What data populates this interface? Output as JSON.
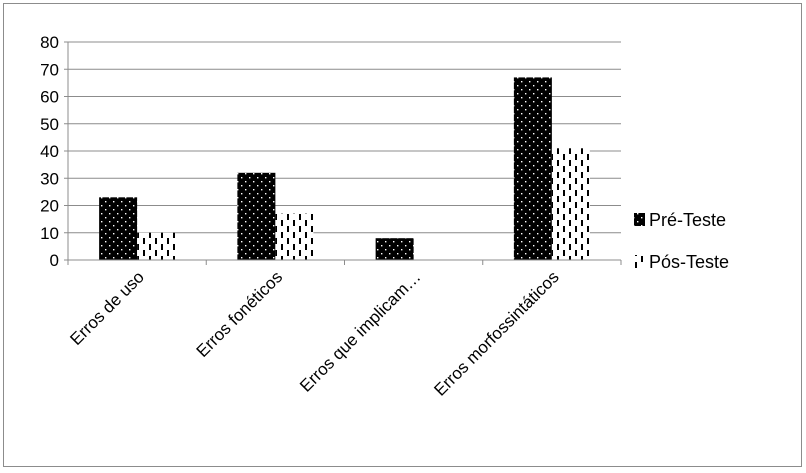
{
  "chart_data": {
    "type": "bar",
    "title": "",
    "xlabel": "",
    "ylabel": "",
    "ylim": [
      0,
      80
    ],
    "yticks": [
      0,
      10,
      20,
      30,
      40,
      50,
      60,
      70,
      80
    ],
    "grid": true,
    "legend_position": "right",
    "categories": [
      "Erros de uso",
      "Erros fonéticos",
      "Erros que implicam…",
      "Erros morfossintáticos"
    ],
    "series": [
      {
        "name": "Pré-Teste",
        "values": [
          23,
          32,
          8,
          67
        ],
        "color": "#000000",
        "pattern": "dotted-dark"
      },
      {
        "name": "Pós-Teste",
        "values": [
          10,
          17,
          0,
          41
        ],
        "color": "#000000",
        "pattern": "dashed-vertical"
      }
    ]
  }
}
